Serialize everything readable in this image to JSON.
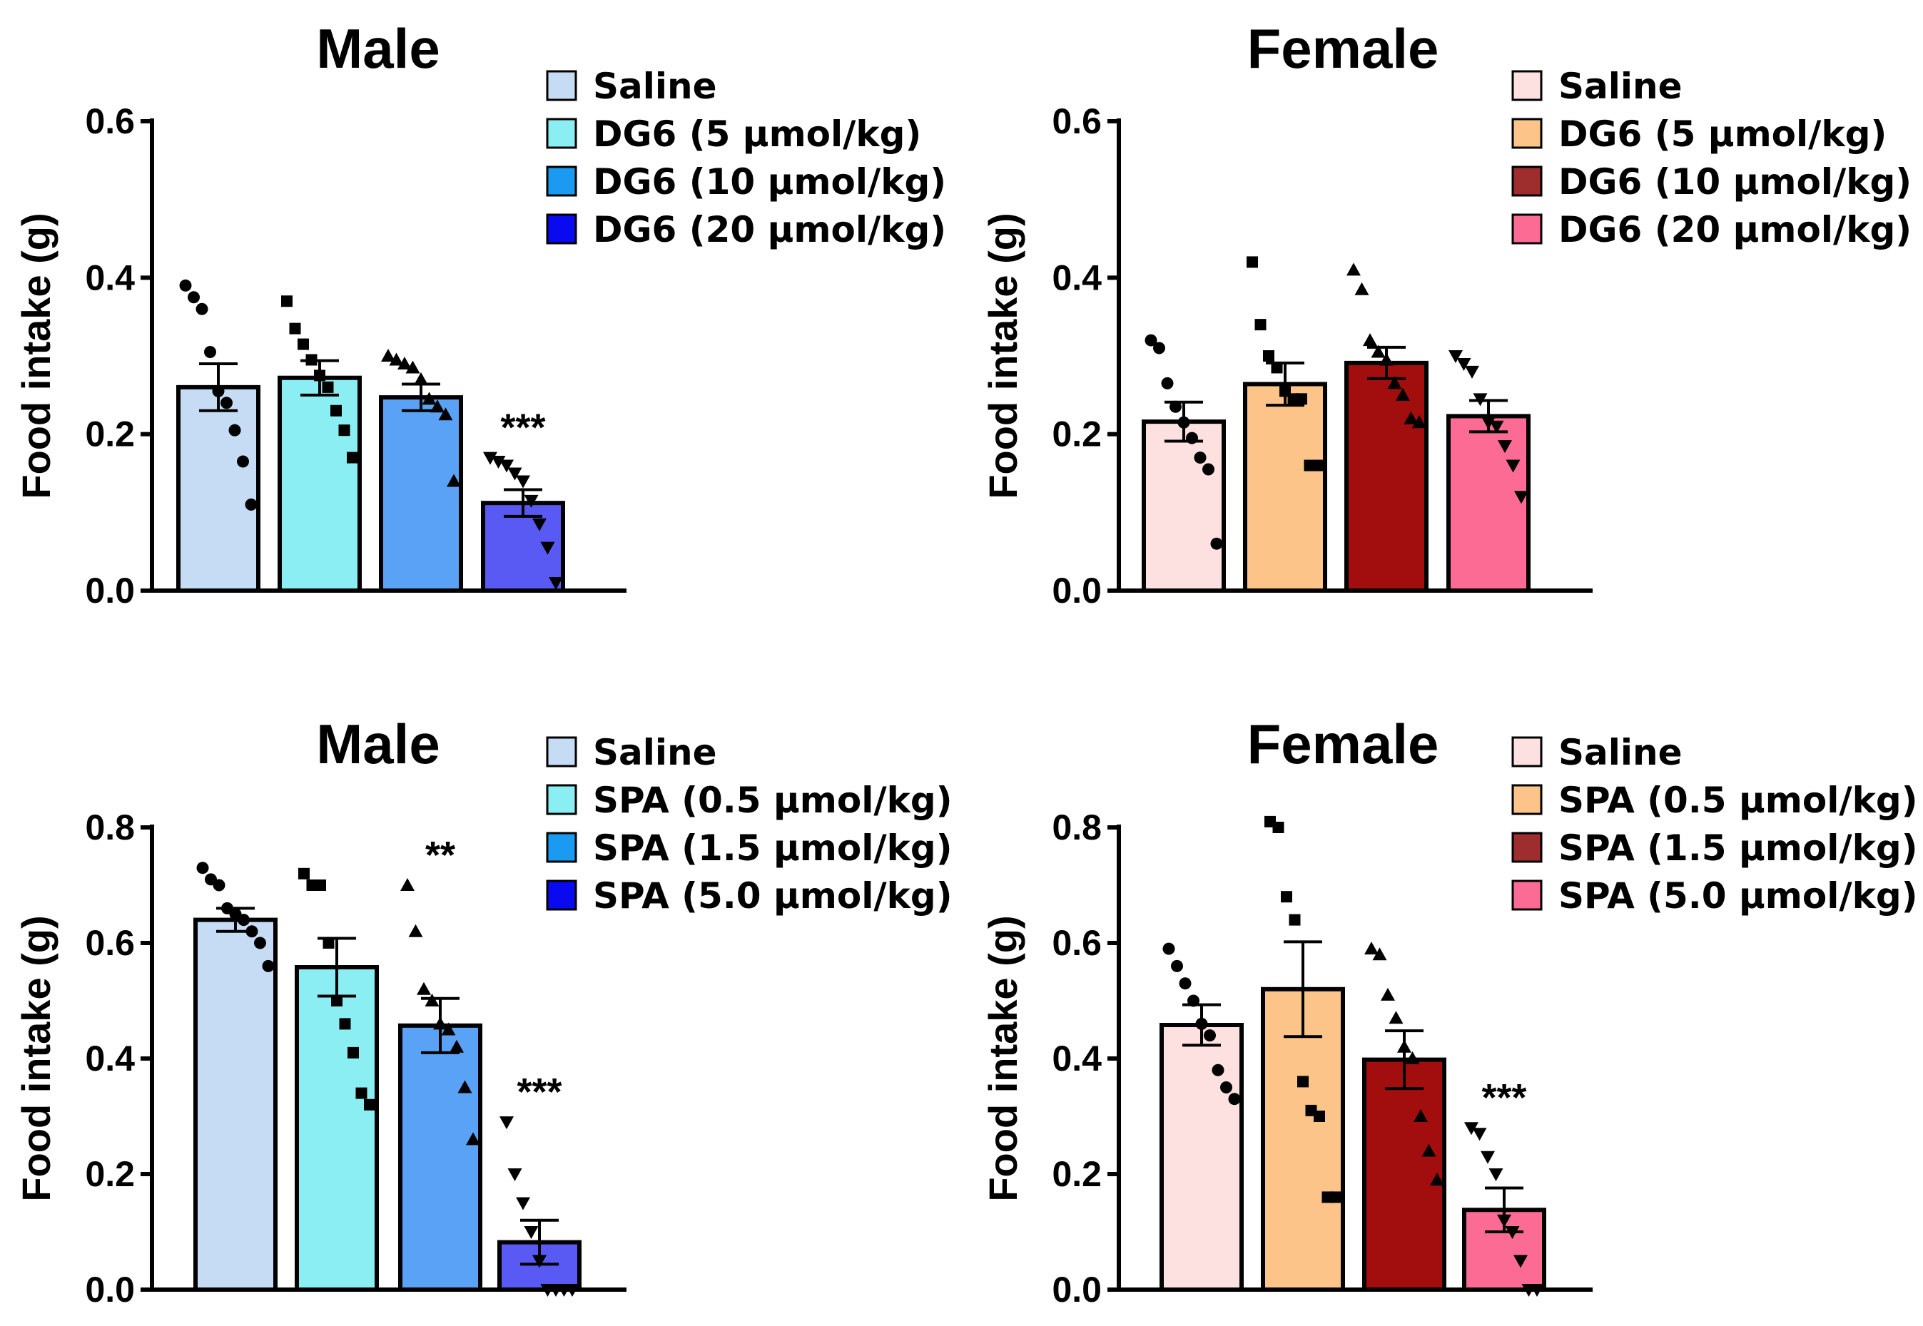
{
  "chart_data": [
    {
      "type": "bar",
      "title": "Male",
      "ylabel": "Food intake (g)",
      "ylim": [
        0,
        0.6
      ],
      "yticks": [
        "0.0",
        "0.2",
        "0.4",
        "0.6"
      ],
      "categories": [
        "Saline",
        "DG6 (5 µmol/kg)",
        "DG6 (10 µmol/kg)",
        "DG6 (20 µmol/kg)"
      ],
      "values": [
        0.26,
        0.272,
        0.247,
        0.112
      ],
      "sem": [
        0.03,
        0.022,
        0.017,
        0.017
      ],
      "colors": [
        "#c6dcf5",
        "#8beef3",
        "#5aa2f6",
        "#5959f4"
      ],
      "legend_colors": [
        "#c6dcf5",
        "#8beef3",
        "#1a9af0",
        "#0a0af0"
      ],
      "markers": [
        "circle",
        "square",
        "triangle",
        "triangle-down"
      ],
      "points": [
        [
          0.39,
          0.375,
          0.36,
          0.305,
          0.255,
          0.24,
          0.205,
          0.165,
          0.11
        ],
        [
          0.37,
          0.335,
          0.315,
          0.295,
          0.275,
          0.26,
          0.23,
          0.205,
          0.17
        ],
        [
          0.3,
          0.295,
          0.29,
          0.285,
          0.27,
          0.245,
          0.235,
          0.225,
          0.14
        ],
        [
          0.17,
          0.165,
          0.16,
          0.15,
          0.14,
          0.115,
          0.085,
          0.055,
          0.01
        ]
      ],
      "significance": [
        "",
        "",
        "",
        "***"
      ]
    },
    {
      "type": "bar",
      "title": "Female",
      "ylabel": "Food intake (g)",
      "ylim": [
        0,
        0.6
      ],
      "yticks": [
        "0.0",
        "0.2",
        "0.4",
        "0.6"
      ],
      "categories": [
        "Saline",
        "DG6 (5 µmol/kg)",
        "DG6 (10 µmol/kg)",
        "DG6 (20 µmol/kg)"
      ],
      "values": [
        0.216,
        0.264,
        0.291,
        0.223
      ],
      "sem": [
        0.025,
        0.027,
        0.02,
        0.02
      ],
      "colors": [
        "#fde0e0",
        "#fdc48a",
        "#a20d0d",
        "#fc6b94"
      ],
      "legend_colors": [
        "#fde0e0",
        "#fdc48a",
        "#9e2e2e",
        "#fc6b94"
      ],
      "markers": [
        "circle",
        "square",
        "triangle",
        "triangle-down"
      ],
      "points": [
        [
          0.32,
          0.31,
          0.265,
          0.235,
          0.215,
          0.195,
          0.17,
          0.155,
          0.06
        ],
        [
          0.42,
          0.34,
          0.3,
          0.285,
          0.255,
          0.245,
          0.245,
          0.16,
          0.16
        ],
        [
          0.41,
          0.385,
          0.32,
          0.305,
          0.295,
          0.265,
          0.25,
          0.22,
          0.215
        ],
        [
          0.3,
          0.29,
          0.28,
          0.245,
          0.215,
          0.21,
          0.185,
          0.16,
          0.12
        ]
      ],
      "significance": [
        "",
        "",
        "",
        ""
      ]
    },
    {
      "type": "bar",
      "title": "Male",
      "ylabel": "Food intake (g)",
      "ylim": [
        0,
        0.8
      ],
      "yticks": [
        "0.0",
        "0.2",
        "0.4",
        "0.6",
        "0.8"
      ],
      "categories": [
        "Saline",
        "SPA (0.5 µmol/kg)",
        "SPA (1.5 µmol/kg)",
        "SPA (5.0 µmol/kg)"
      ],
      "values": [
        0.64,
        0.558,
        0.457,
        0.082
      ],
      "sem": [
        0.02,
        0.05,
        0.047,
        0.038
      ],
      "colors": [
        "#c6dcf5",
        "#8beef3",
        "#5aa2f6",
        "#5959f4"
      ],
      "legend_colors": [
        "#c6dcf5",
        "#8beef3",
        "#1a9af0",
        "#0a0af0"
      ],
      "markers": [
        "circle",
        "square",
        "triangle",
        "triangle-down"
      ],
      "points": [
        [
          0.73,
          0.71,
          0.7,
          0.66,
          0.65,
          0.64,
          0.62,
          0.6,
          0.56
        ],
        [
          0.72,
          0.7,
          0.7,
          0.6,
          0.5,
          0.46,
          0.41,
          0.34,
          0.32
        ],
        [
          0.7,
          0.62,
          0.52,
          0.5,
          0.46,
          0.45,
          0.42,
          0.35,
          0.26
        ],
        [
          0.29,
          0.2,
          0.15,
          0.1,
          0.05,
          0.0,
          0.0,
          0.0,
          0.0
        ]
      ],
      "significance": [
        "",
        "",
        "**",
        "***"
      ]
    },
    {
      "type": "bar",
      "title": "Female",
      "ylabel": "Food intake (g)",
      "ylim": [
        0,
        0.8
      ],
      "yticks": [
        "0.0",
        "0.2",
        "0.4",
        "0.6",
        "0.8"
      ],
      "categories": [
        "Saline",
        "SPA (0.5 µmol/kg)",
        "SPA (1.5 µmol/kg)",
        "SPA (5.0 µmol/kg)"
      ],
      "values": [
        0.458,
        0.52,
        0.398,
        0.138
      ],
      "sem": [
        0.035,
        0.082,
        0.05,
        0.038
      ],
      "colors": [
        "#fde0e0",
        "#fdc48a",
        "#a20d0d",
        "#fc6b94"
      ],
      "legend_colors": [
        "#fde0e0",
        "#fdc48a",
        "#9e2e2e",
        "#fc6b94"
      ],
      "markers": [
        "circle",
        "square",
        "triangle",
        "triangle-down"
      ],
      "points": [
        [
          0.59,
          0.56,
          0.53,
          0.5,
          0.46,
          0.44,
          0.38,
          0.35,
          0.33
        ],
        [
          0.81,
          0.8,
          0.68,
          0.64,
          0.36,
          0.31,
          0.3,
          0.16,
          0.16
        ],
        [
          0.59,
          0.58,
          0.51,
          0.47,
          0.42,
          0.4,
          0.3,
          0.24,
          0.19
        ],
        [
          0.28,
          0.27,
          0.23,
          0.2,
          0.12,
          0.1,
          0.05,
          0.0,
          0.0
        ]
      ],
      "significance": [
        "",
        "",
        "",
        "***"
      ]
    }
  ]
}
